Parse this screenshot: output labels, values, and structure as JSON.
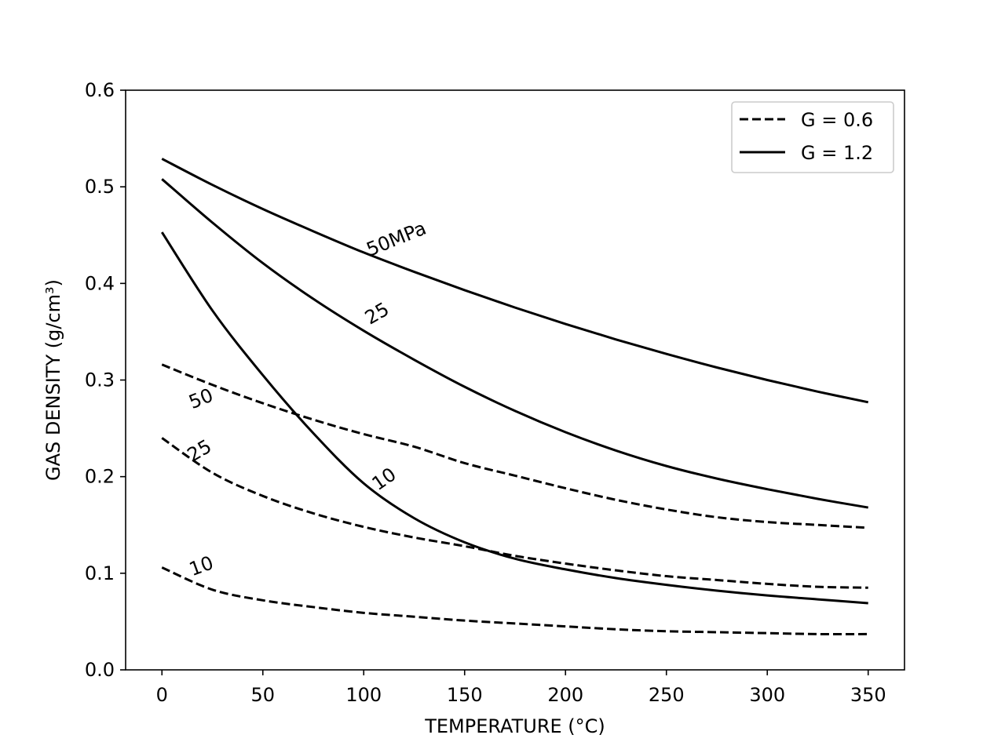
{
  "chart_data": {
    "type": "line",
    "title": "",
    "xlabel": "TEMPERATURE (°C)",
    "ylabel": "GAS DENSITY (g/cm³)",
    "xlim": [
      -18,
      368
    ],
    "ylim": [
      0,
      0.6
    ],
    "xticks": [
      0,
      50,
      100,
      150,
      200,
      250,
      300,
      350
    ],
    "yticks": [
      0.0,
      0.1,
      0.2,
      0.3,
      0.4,
      0.5,
      0.6
    ],
    "xtick_labels": [
      "0",
      "50",
      "100",
      "150",
      "200",
      "250",
      "300",
      "350"
    ],
    "ytick_labels": [
      "0.0",
      "0.1",
      "0.2",
      "0.3",
      "0.4",
      "0.5",
      "0.6"
    ],
    "grid": false,
    "legend": {
      "position": "top-right",
      "entries": [
        {
          "label": "G = 0.6",
          "style": "dashed"
        },
        {
          "label": "G = 1.2",
          "style": "solid"
        }
      ]
    },
    "x": [
      0,
      25,
      50,
      75,
      100,
      125,
      150,
      175,
      200,
      225,
      250,
      275,
      300,
      325,
      350
    ],
    "series": [
      {
        "name": "G = 1.2, 50MPa",
        "style": "solid",
        "label": "50MPa",
        "label_x": 103,
        "label_y": 0.428,
        "label_angle": -22,
        "values": [
          0.529,
          0.502,
          0.477,
          0.454,
          0.432,
          0.412,
          0.393,
          0.375,
          0.358,
          0.342,
          0.327,
          0.313,
          0.3,
          0.288,
          0.277
        ]
      },
      {
        "name": "G = 1.2, 25MPa",
        "style": "solid",
        "label": "25",
        "label_x": 103,
        "label_y": 0.357,
        "label_angle": -30,
        "values": [
          0.508,
          0.463,
          0.421,
          0.384,
          0.351,
          0.321,
          0.293,
          0.268,
          0.246,
          0.227,
          0.211,
          0.198,
          0.187,
          0.177,
          0.168
        ]
      },
      {
        "name": "G = 1.2, 10MPa",
        "style": "solid",
        "label": "10",
        "label_x": 107,
        "label_y": 0.185,
        "label_angle": -35,
        "values": [
          0.453,
          0.372,
          0.305,
          0.245,
          0.193,
          0.157,
          0.132,
          0.115,
          0.104,
          0.095,
          0.088,
          0.082,
          0.077,
          0.073,
          0.069
        ]
      },
      {
        "name": "G = 0.6, 50MPa",
        "style": "dashed",
        "label": "50",
        "label_x": 15,
        "label_y": 0.27,
        "label_angle": -22,
        "values": [
          0.316,
          0.295,
          0.276,
          0.259,
          0.244,
          0.231,
          0.214,
          0.201,
          0.188,
          0.176,
          0.166,
          0.158,
          0.153,
          0.15,
          0.147
        ]
      },
      {
        "name": "G = 0.6, 25MPa",
        "style": "dashed",
        "label": "25",
        "label_x": 15,
        "label_y": 0.215,
        "label_angle": -30,
        "values": [
          0.24,
          0.204,
          0.18,
          0.162,
          0.148,
          0.137,
          0.128,
          0.118,
          0.11,
          0.103,
          0.097,
          0.093,
          0.089,
          0.086,
          0.085
        ]
      },
      {
        "name": "G = 0.6, 10MPa",
        "style": "dashed",
        "label": "10",
        "label_x": 15,
        "label_y": 0.097,
        "label_angle": -20,
        "values": [
          0.106,
          0.083,
          0.072,
          0.065,
          0.059,
          0.055,
          0.051,
          0.048,
          0.045,
          0.042,
          0.04,
          0.039,
          0.038,
          0.037,
          0.037
        ]
      }
    ]
  }
}
